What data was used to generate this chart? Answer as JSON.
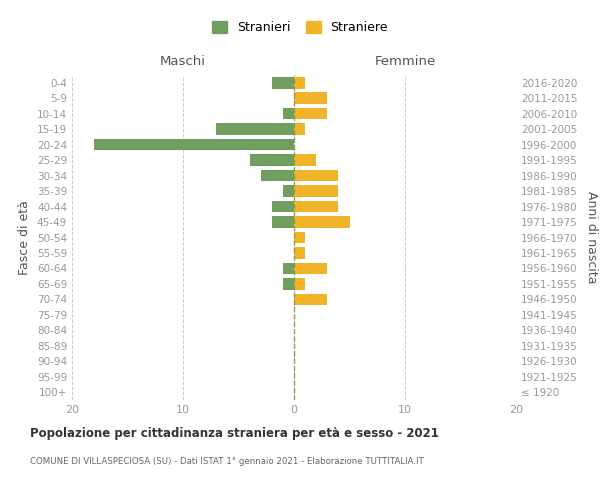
{
  "age_groups": [
    "100+",
    "95-99",
    "90-94",
    "85-89",
    "80-84",
    "75-79",
    "70-74",
    "65-69",
    "60-64",
    "55-59",
    "50-54",
    "45-49",
    "40-44",
    "35-39",
    "30-34",
    "25-29",
    "20-24",
    "15-19",
    "10-14",
    "5-9",
    "0-4"
  ],
  "birth_years": [
    "≤ 1920",
    "1921-1925",
    "1926-1930",
    "1931-1935",
    "1936-1940",
    "1941-1945",
    "1946-1950",
    "1951-1955",
    "1956-1960",
    "1961-1965",
    "1966-1970",
    "1971-1975",
    "1976-1980",
    "1981-1985",
    "1986-1990",
    "1991-1995",
    "1996-2000",
    "2001-2005",
    "2006-2010",
    "2011-2015",
    "2016-2020"
  ],
  "maschi_stranieri": [
    0,
    0,
    0,
    0,
    0,
    0,
    0,
    1,
    1,
    0,
    0,
    2,
    2,
    1,
    3,
    4,
    18,
    7,
    1,
    0,
    2
  ],
  "femmine_straniere": [
    0,
    0,
    0,
    0,
    0,
    0,
    3,
    1,
    3,
    1,
    1,
    5,
    4,
    4,
    4,
    2,
    0,
    1,
    3,
    3,
    1
  ],
  "color_maschi": "#6f9e5e",
  "color_femmine": "#f0b429",
  "title": "Popolazione per cittadinanza straniera per età e sesso - 2021",
  "subtitle": "COMUNE DI VILLASPECIOSA (SU) - Dati ISTAT 1° gennaio 2021 - Elaborazione TUTTITALIA.IT",
  "xlabel_left": "Maschi",
  "xlabel_right": "Femmine",
  "ylabel_left": "Fasce di età",
  "ylabel_right": "Anni di nascita",
  "legend_maschi": "Stranieri",
  "legend_femmine": "Straniere",
  "xlim": 20,
  "background_color": "#ffffff",
  "grid_color": "#cccccc",
  "center_line_color": "#999944",
  "tick_color": "#999999",
  "label_color": "#555555"
}
